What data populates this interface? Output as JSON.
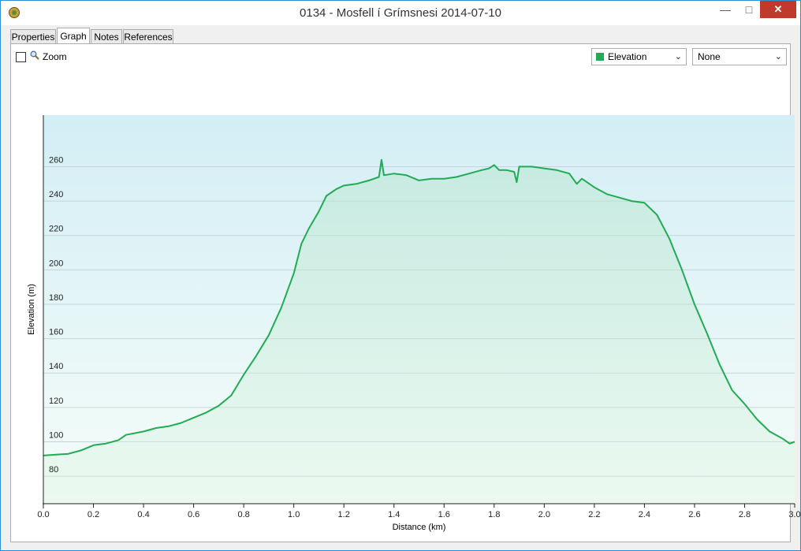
{
  "window": {
    "title": "0134 - Mosfell í Grímsnesi 2014-07-10",
    "min_label": "—",
    "max_label": "□",
    "close_label": "✕"
  },
  "tabs": [
    {
      "label": "Properties",
      "active": false
    },
    {
      "label": "Graph",
      "active": true
    },
    {
      "label": "Notes",
      "active": false
    },
    {
      "label": "References",
      "active": false
    }
  ],
  "toolbar": {
    "zoom_label": "Zoom",
    "zoom_checked": false,
    "primary_select": "Elevation",
    "primary_color": "#22aa55",
    "secondary_select": "None"
  },
  "icons": {
    "app": "app-icon",
    "zoom": "magnifier-icon",
    "dropdown": "chevron-down-icon"
  },
  "chart_data": {
    "type": "area",
    "xlabel": "Distance (km)",
    "ylabel": "Elevation (m)",
    "xlim": [
      0,
      3.0
    ],
    "ylim": [
      64,
      290
    ],
    "x_ticks": [
      "0.0",
      "0.2",
      "0.4",
      "0.6",
      "0.8",
      "1.0",
      "1.2",
      "1.4",
      "1.6",
      "1.8",
      "2.0",
      "2.2",
      "2.4",
      "2.6",
      "2.8",
      "3.0"
    ],
    "y_ticks": [
      "80",
      "100",
      "120",
      "140",
      "160",
      "180",
      "200",
      "220",
      "240",
      "260"
    ],
    "grid": true,
    "line_color": "#22aa55",
    "series": [
      {
        "x": [
          0.0,
          0.05,
          0.1,
          0.15,
          0.2,
          0.25,
          0.3,
          0.33,
          0.4,
          0.45,
          0.5,
          0.55,
          0.6,
          0.65,
          0.7,
          0.75,
          0.8,
          0.85,
          0.9,
          0.95,
          1.0,
          1.03,
          1.06,
          1.1,
          1.13,
          1.17,
          1.2,
          1.25,
          1.3,
          1.34,
          1.35,
          1.36,
          1.4,
          1.45,
          1.5,
          1.55,
          1.6,
          1.65,
          1.7,
          1.75,
          1.78,
          1.8,
          1.82,
          1.85,
          1.88,
          1.89,
          1.9,
          1.92,
          1.95,
          2.0,
          2.05,
          2.1,
          2.13,
          2.15,
          2.2,
          2.25,
          2.3,
          2.35,
          2.4,
          2.45,
          2.5,
          2.55,
          2.6,
          2.65,
          2.7,
          2.75,
          2.8,
          2.85,
          2.9,
          2.95,
          2.98,
          3.0
        ],
        "y": [
          92,
          92.5,
          93,
          95,
          98,
          99,
          101,
          104,
          106,
          108,
          109,
          111,
          114,
          117,
          121,
          127,
          139,
          150,
          162,
          178,
          198,
          215,
          224,
          234,
          243,
          247,
          249,
          250,
          252,
          254,
          264,
          255,
          256,
          255,
          252,
          253,
          253,
          254,
          256,
          258,
          259,
          261,
          258,
          258,
          257,
          251,
          260,
          260,
          260,
          259,
          258,
          256,
          250,
          253,
          248,
          244,
          242,
          240,
          239,
          232,
          218,
          200,
          180,
          163,
          145,
          130,
          122,
          113,
          106,
          102,
          99,
          100
        ]
      }
    ]
  }
}
